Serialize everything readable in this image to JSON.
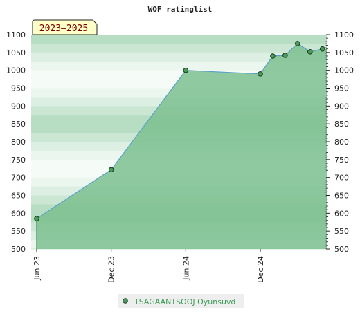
{
  "chart_data": {
    "type": "area",
    "title": "WOF ratinglist",
    "period_label": "2023–2025",
    "xlabel": "",
    "ylabel": "",
    "ylim": [
      500,
      1100
    ],
    "yticks": [
      500,
      550,
      600,
      650,
      700,
      750,
      800,
      850,
      900,
      950,
      1000,
      1050,
      1100
    ],
    "x_ticks": [
      "Jun 23",
      "Dec 23",
      "Jun 24",
      "Dec 24"
    ],
    "series": [
      {
        "name": "TSAGAANTSOOJ Oyunsuvd",
        "color": "#5aa0c8",
        "fill_color": "#7cc08f",
        "x": [
          "2023-06",
          "2023-12",
          "2024-06",
          "2024-12",
          "2025-01",
          "2025-02",
          "2025-03",
          "2025-04",
          "2025-05"
        ],
        "values": [
          585,
          722,
          1000,
          990,
          1040,
          1042,
          1075,
          1052,
          1060
        ]
      }
    ],
    "legend_position": "bottom-center",
    "grid": "banded-horizontal"
  }
}
